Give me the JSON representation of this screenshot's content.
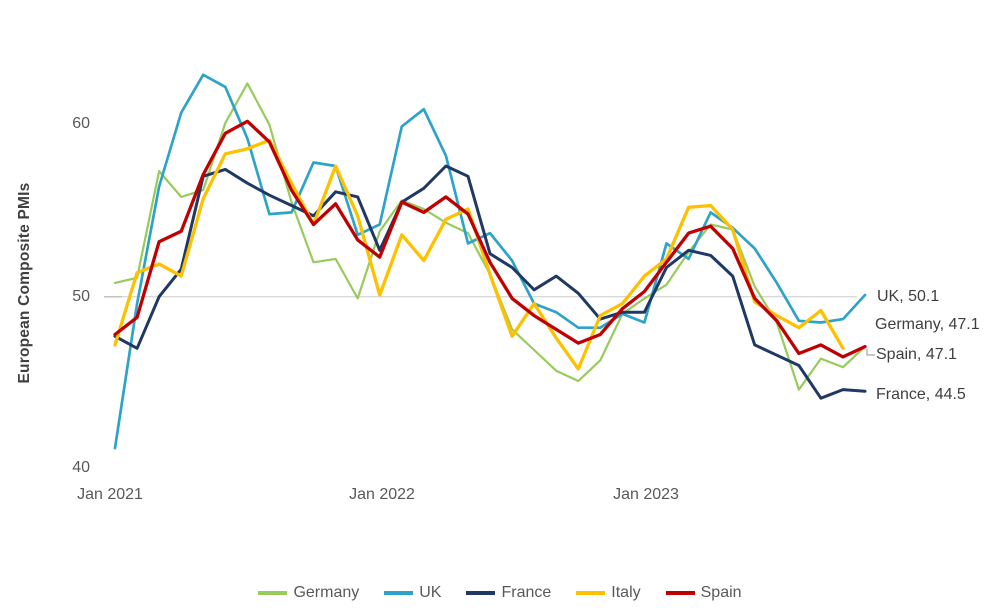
{
  "chart_data": {
    "type": "line",
    "title": "",
    "xlabel": "",
    "ylabel": "European Composite PMIs",
    "yticks": [
      "60",
      "50",
      "40"
    ],
    "xticks": [
      "Jan 2021",
      "Jan 2022",
      "Jan 2023"
    ],
    "ylim": [
      40,
      64
    ],
    "gridline_value": 50,
    "grid": "single-line-at-50",
    "legend_position": "bottom",
    "x_range": "Jan 2021 to Nov 2023, monthly",
    "categories": [
      "Jan 2021",
      "Feb 2021",
      "Mar 2021",
      "Apr 2021",
      "May 2021",
      "Jun 2021",
      "Jul 2021",
      "Aug 2021",
      "Sep 2021",
      "Oct 2021",
      "Nov 2021",
      "Dec 2021",
      "Jan 2022",
      "Feb 2022",
      "Mar 2022",
      "Apr 2022",
      "May 2022",
      "Jun 2022",
      "Jul 2022",
      "Aug 2022",
      "Sep 2022",
      "Oct 2022",
      "Nov 2022",
      "Dec 2022",
      "Jan 2023",
      "Feb 2023",
      "Mar 2023",
      "Apr 2023",
      "May 2023",
      "Jun 2023",
      "Jul 2023",
      "Aug 2023",
      "Sep 2023",
      "Oct 2023",
      "Nov 2023"
    ],
    "series": [
      {
        "name": "Germany",
        "color": "#97CB5C",
        "width": 2.2,
        "values": [
          50.8,
          51.1,
          57.3,
          55.8,
          56.2,
          60.1,
          62.4,
          60.0,
          55.5,
          52.0,
          52.2,
          49.9,
          53.8,
          55.6,
          55.1,
          54.3,
          53.7,
          51.3,
          48.1,
          46.9,
          45.7,
          45.1,
          46.3,
          49.0,
          49.9,
          50.7,
          52.6,
          54.2,
          53.9,
          50.6,
          48.5,
          44.6,
          46.4,
          45.9,
          47.1
        ]
      },
      {
        "name": "UK",
        "color": "#2EA3C9",
        "width": 2.7,
        "values": [
          41.2,
          49.6,
          56.4,
          60.7,
          62.9,
          62.2,
          59.2,
          54.8,
          54.9,
          57.8,
          57.6,
          53.6,
          54.2,
          59.9,
          60.9,
          58.2,
          53.1,
          53.7,
          52.1,
          49.6,
          49.1,
          48.2,
          48.2,
          49.0,
          48.5,
          53.1,
          52.2,
          54.9,
          54.0,
          52.8,
          50.8,
          48.6,
          48.5,
          48.7,
          50.1
        ]
      },
      {
        "name": "France",
        "color": "#1F3864",
        "width": 3.0,
        "values": [
          47.7,
          47.0,
          50.0,
          51.6,
          57.0,
          57.4,
          56.6,
          55.9,
          55.3,
          54.7,
          56.1,
          55.8,
          52.7,
          55.5,
          56.3,
          57.6,
          57.0,
          52.5,
          51.7,
          50.4,
          51.2,
          50.2,
          48.7,
          49.1,
          49.1,
          51.7,
          52.7,
          52.4,
          51.2,
          47.2,
          46.6,
          46.0,
          44.1,
          44.6,
          44.5
        ]
      },
      {
        "name": "Italy",
        "color": "#FFC000",
        "width": 3.3,
        "values": [
          47.2,
          51.4,
          51.9,
          51.2,
          55.7,
          58.3,
          58.6,
          59.1,
          56.6,
          54.2,
          57.6,
          54.7,
          50.1,
          53.6,
          52.1,
          54.5,
          55.1,
          51.3,
          47.7,
          49.6,
          47.6,
          45.8,
          48.9,
          49.6,
          51.2,
          52.2,
          55.2,
          55.3,
          53.9,
          49.7,
          48.9,
          48.2,
          49.2,
          47.0
        ]
      },
      {
        "name": "Spain",
        "color": "#C00000",
        "width": 3.3,
        "values": [
          47.8,
          48.8,
          53.2,
          53.8,
          57.1,
          59.5,
          60.2,
          59.0,
          56.2,
          54.2,
          55.4,
          53.3,
          52.3,
          55.5,
          54.9,
          55.8,
          54.8,
          52.0,
          49.9,
          48.9,
          48.1,
          47.3,
          47.8,
          49.3,
          50.3,
          52.0,
          53.7,
          54.1,
          52.8,
          49.9,
          48.6,
          46.7,
          47.2,
          46.5,
          47.1
        ]
      }
    ],
    "end_labels": [
      "UK, 50.1",
      "Germany, 47.1",
      "Spain, 47.1",
      "France, 44.5"
    ],
    "colors": {
      "gridline": "#D9D9D9",
      "tick_text": "#595959",
      "end_label_text": "#3F3F3F",
      "axis_title_text": "#404040",
      "leader_line": "#A6A6A6"
    }
  }
}
